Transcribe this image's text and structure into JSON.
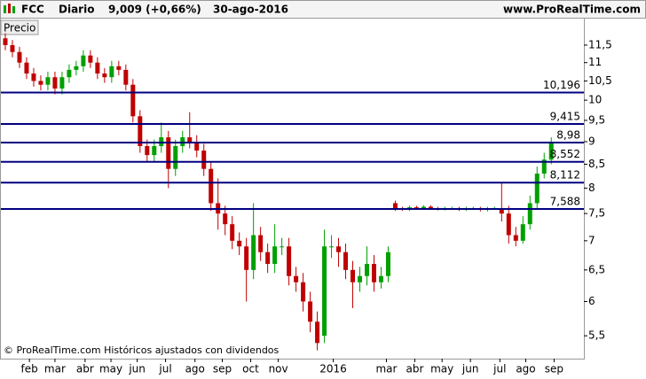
{
  "chart_data": {
    "type": "candlestick",
    "title": "FCC",
    "period": "Diario",
    "last": "9,009 (+0,66%)",
    "date": "30-ago-2016",
    "source": "www.ProRealTime.com",
    "panel_label": "Precio",
    "footnote": "© ProRealTime.com Históricos ajustados con dividendos",
    "log_scale": true,
    "up_color": "#00a000",
    "down_color": "#c00000",
    "x": [
      0,
      1,
      2,
      3,
      4,
      5,
      6,
      7,
      8,
      9,
      10,
      11,
      12,
      13,
      14,
      15,
      16,
      17,
      18,
      19,
      20,
      21,
      22,
      23,
      24,
      25,
      26,
      27,
      28,
      29,
      30,
      31,
      32,
      33,
      34,
      35,
      36,
      37,
      38,
      39,
      40,
      41,
      42,
      43,
      44,
      45,
      46,
      47,
      48,
      49,
      50,
      51,
      52,
      53,
      54,
      55,
      56,
      57,
      58,
      59,
      60,
      61,
      62,
      63,
      64,
      65,
      66,
      67,
      68,
      69,
      70,
      71,
      72,
      73,
      74,
      75,
      76,
      77
    ],
    "open": [
      11.7,
      11.5,
      11.3,
      11.0,
      10.7,
      10.5,
      10.4,
      10.6,
      10.3,
      10.6,
      10.8,
      10.9,
      11.2,
      11.0,
      10.7,
      10.6,
      10.9,
      10.8,
      10.4,
      9.6,
      8.9,
      8.7,
      8.9,
      9.1,
      8.4,
      8.9,
      9.1,
      9.0,
      8.8,
      8.4,
      7.7,
      7.5,
      7.3,
      7.0,
      6.9,
      6.5,
      7.1,
      6.8,
      6.6,
      6.9,
      6.9,
      6.4,
      6.3,
      6.0,
      5.7,
      5.5,
      6.9,
      6.9,
      6.8,
      6.5,
      6.3,
      6.4,
      6.6,
      6.3,
      6.4,
      7.7,
      7.6,
      7.58,
      7.62,
      7.6,
      7.63,
      7.6,
      7.59,
      7.6,
      7.6,
      7.58,
      7.6,
      7.6,
      7.57,
      7.6,
      7.6,
      7.5,
      7.1,
      7.0,
      7.3,
      7.7,
      8.3,
      8.6
    ],
    "high": [
      11.85,
      11.65,
      11.45,
      11.15,
      10.85,
      10.65,
      10.75,
      10.75,
      10.75,
      10.95,
      11.05,
      11.35,
      11.35,
      11.15,
      10.85,
      11.05,
      11.05,
      10.95,
      10.55,
      9.75,
      9.05,
      9.05,
      9.45,
      9.25,
      9.05,
      9.25,
      9.7,
      9.15,
      8.95,
      8.55,
      8.2,
      7.65,
      7.45,
      7.15,
      7.05,
      7.7,
      7.25,
      6.95,
      7.3,
      7.05,
      7.05,
      6.55,
      6.45,
      6.15,
      5.85,
      7.2,
      7.1,
      7.05,
      6.95,
      6.65,
      6.55,
      6.9,
      6.75,
      6.55,
      6.9,
      7.75,
      7.63,
      7.65,
      7.65,
      7.66,
      7.66,
      7.63,
      7.63,
      7.63,
      7.63,
      7.63,
      7.63,
      7.63,
      7.63,
      7.63,
      8.1,
      7.65,
      7.25,
      7.45,
      7.85,
      8.45,
      8.75,
      9.1
    ],
    "low": [
      11.35,
      11.15,
      10.85,
      10.55,
      10.35,
      10.25,
      10.25,
      10.15,
      10.15,
      10.45,
      10.65,
      10.75,
      10.85,
      10.55,
      10.45,
      10.45,
      10.65,
      10.25,
      9.45,
      8.75,
      8.55,
      8.55,
      8.75,
      8.0,
      8.25,
      8.75,
      8.85,
      8.65,
      8.25,
      7.55,
      7.2,
      7.1,
      6.85,
      6.75,
      6.0,
      6.35,
      6.65,
      6.45,
      6.45,
      6.75,
      6.25,
      6.15,
      5.85,
      5.55,
      5.3,
      5.4,
      6.7,
      6.55,
      6.35,
      5.9,
      6.15,
      6.25,
      6.15,
      6.2,
      6.3,
      7.55,
      7.55,
      7.55,
      7.57,
      7.57,
      7.57,
      7.56,
      7.56,
      7.57,
      7.55,
      7.55,
      7.57,
      7.54,
      7.54,
      7.57,
      7.35,
      6.95,
      6.9,
      6.95,
      7.2,
      7.6,
      8.2,
      8.5
    ],
    "close": [
      11.5,
      11.3,
      11.0,
      10.7,
      10.5,
      10.4,
      10.6,
      10.3,
      10.6,
      10.8,
      10.9,
      11.2,
      11.0,
      10.7,
      10.6,
      10.9,
      10.8,
      10.4,
      9.6,
      8.9,
      8.7,
      8.9,
      9.1,
      8.4,
      8.9,
      9.1,
      9.0,
      8.8,
      8.4,
      7.7,
      7.5,
      7.3,
      7.0,
      6.9,
      6.5,
      7.1,
      6.8,
      6.6,
      6.9,
      6.9,
      6.4,
      6.3,
      6.0,
      5.7,
      5.4,
      6.9,
      6.9,
      6.8,
      6.5,
      6.3,
      6.4,
      6.6,
      6.3,
      6.4,
      6.8,
      7.6,
      7.58,
      7.62,
      7.6,
      7.63,
      7.6,
      7.59,
      7.6,
      7.6,
      7.58,
      7.6,
      7.6,
      7.57,
      7.6,
      7.6,
      7.5,
      7.1,
      7.0,
      7.3,
      7.7,
      8.3,
      8.6,
      9.0
    ],
    "xlim": [
      -0.625,
      81.6
    ],
    "xticks": [
      {
        "value": 3.4,
        "label": "feb"
      },
      {
        "value": 7,
        "label": "mar"
      },
      {
        "value": 11.25,
        "label": "abr"
      },
      {
        "value": 14.9,
        "label": "may"
      },
      {
        "value": 18.6,
        "label": "jun"
      },
      {
        "value": 22.6,
        "label": "jul"
      },
      {
        "value": 26.75,
        "label": "ago"
      },
      {
        "value": 30.6,
        "label": "sep"
      },
      {
        "value": 34.6,
        "label": "oct"
      },
      {
        "value": 38.5,
        "label": "nov"
      },
      {
        "value": 46.25,
        "label": "2016"
      },
      {
        "value": 53.75,
        "label": "mar"
      },
      {
        "value": 57.75,
        "label": "abr"
      },
      {
        "value": 61.6,
        "label": "may"
      },
      {
        "value": 65.6,
        "label": "jun"
      },
      {
        "value": 69.75,
        "label": "jul"
      },
      {
        "value": 73.4,
        "label": "ago"
      },
      {
        "value": 77.4,
        "label": "sep"
      }
    ],
    "ylim": [
      5.19,
      12.3
    ],
    "yticks": [
      {
        "value": 5.5,
        "label": "5,5"
      },
      6,
      {
        "value": 6.5,
        "label": "6,5"
      },
      7,
      {
        "value": 7.5,
        "label": "7,5"
      },
      8,
      {
        "value": 8.5,
        "label": "8,5"
      },
      9,
      {
        "value": 9.5,
        "label": "9,5"
      },
      10,
      {
        "value": 10.5,
        "label": "10,5"
      },
      11,
      {
        "value": 11.5,
        "label": "11,5"
      }
    ],
    "hlines": {
      "color": "#000080",
      "values": [
        10.196,
        9.415,
        8.98,
        8.552,
        8.112,
        7.588
      ],
      "value_labels": [
        "10,196",
        "9,415",
        "8,98",
        "8,552",
        "8,112",
        "7,588"
      ]
    }
  }
}
